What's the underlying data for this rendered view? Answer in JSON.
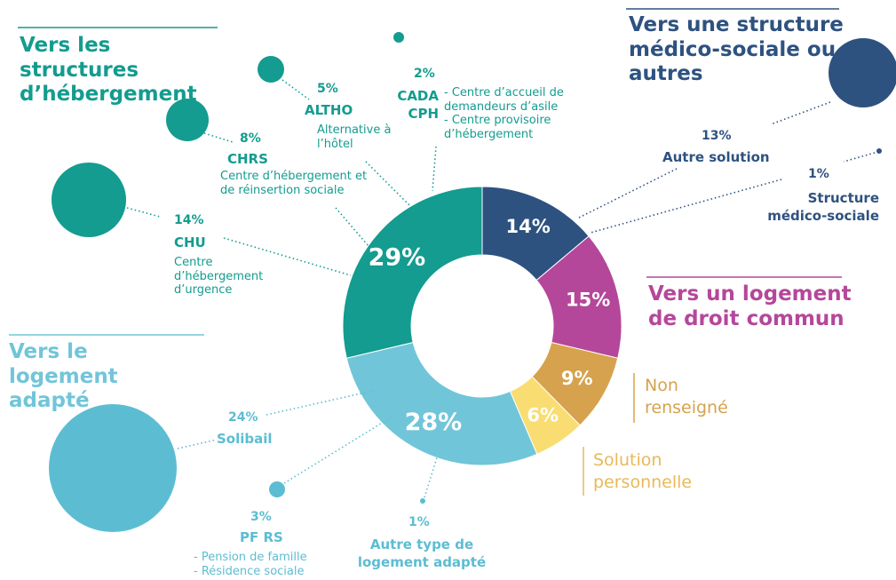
{
  "chart_data": {
    "type": "donut",
    "categories": [
      "Vers une structure médico-sociale ou autres",
      "Vers un logement de droit commun",
      "Non renseigné",
      "Solution personnelle",
      "Vers le logement adapté",
      "Vers les structures d’hébergement"
    ],
    "values": [
      14,
      15,
      9,
      6,
      28,
      29
    ],
    "value_labels": [
      "14%",
      "15%",
      "9%",
      "6%",
      "28%",
      "29%"
    ],
    "colors": [
      "#2e5280",
      "#b5479a",
      "#d6a24e",
      "#f9dd72",
      "#71c5d9",
      "#139c8f"
    ],
    "details": [
      {
        "name": "CHU",
        "value": 14,
        "value_label": "14%",
        "description": [
          "Centre d’hébergement d’urgence"
        ],
        "color": "#139c8f"
      },
      {
        "name": "CHRS",
        "value": 8,
        "value_label": "8%",
        "description": [
          "Centre d’hébergement et de réinsertion sociale"
        ],
        "color": "#139c8f"
      },
      {
        "name": "ALTHO",
        "value": 5,
        "value_label": "5%",
        "description": [
          "Alternative à l’hôtel"
        ],
        "color": "#139c8f"
      },
      {
        "name": "CADA CPH",
        "value": 2,
        "value_label": "2%",
        "description": [
          "- Centre d’accueil de demandeurs d’asile",
          "- Centre provisoire d’hébergement"
        ],
        "color": "#139c8f"
      },
      {
        "name": "Autre solution",
        "value": 13,
        "value_label": "13%",
        "description": [],
        "color": "#2e5280"
      },
      {
        "name": "Structure médico-sociale",
        "value": 1,
        "value_label": "1%",
        "description": [],
        "color": "#2e5280"
      },
      {
        "name": "Solibail",
        "value": 24,
        "value_label": "24%",
        "description": [],
        "color": "#5cbdd2"
      },
      {
        "name": "PF RS",
        "value": 3,
        "value_label": "3%",
        "description": [
          "- Pension de famille",
          "- Résidence sociale"
        ],
        "color": "#5cbdd2"
      },
      {
        "name": "Autre type de logement adapté",
        "value": 1,
        "value_label": "1%",
        "description": [],
        "color": "#5cbdd2"
      }
    ]
  }
}
